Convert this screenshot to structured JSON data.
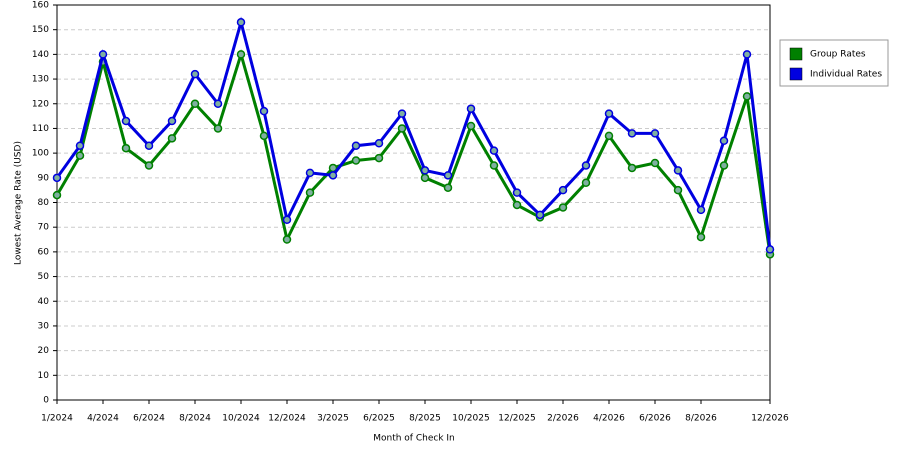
{
  "chart_data": {
    "type": "line",
    "x_label": "Month of Check In",
    "y_label": "Lowest Average Rate (USD)",
    "categories": [
      "1/2024",
      null,
      "4/2024",
      null,
      "6/2024",
      null,
      "8/2024",
      null,
      "10/2024",
      null,
      "12/2024",
      null,
      "3/2025",
      null,
      "6/2025",
      null,
      "8/2025",
      null,
      "10/2025",
      null,
      "12/2025",
      null,
      "2/2026",
      null,
      "4/2026",
      null,
      "6/2026",
      null,
      "8/2026",
      null,
      null,
      "12/2026"
    ],
    "series": [
      {
        "name": "Group Rates",
        "color": "#008000",
        "values": [
          83,
          99,
          137,
          102,
          95,
          106,
          120,
          110,
          140,
          107,
          65,
          84,
          94,
          97,
          98,
          110,
          90,
          86,
          111,
          95,
          79,
          74,
          78,
          88,
          107,
          94,
          96,
          85,
          66,
          95,
          123,
          59
        ]
      },
      {
        "name": "Individual Rates",
        "color": "#0000e0",
        "values": [
          90,
          103,
          140,
          113,
          103,
          113,
          132,
          120,
          153,
          117,
          73,
          92,
          91,
          103,
          104,
          116,
          93,
          91,
          118,
          101,
          84,
          75,
          85,
          95,
          116,
          108,
          108,
          93,
          77,
          105,
          140,
          61
        ]
      }
    ],
    "ylim": [
      0,
      160
    ],
    "yticks": [
      0,
      10,
      20,
      30,
      40,
      50,
      60,
      70,
      80,
      90,
      100,
      110,
      120,
      130,
      140,
      150,
      160
    ],
    "grid": true,
    "legend": "right"
  }
}
